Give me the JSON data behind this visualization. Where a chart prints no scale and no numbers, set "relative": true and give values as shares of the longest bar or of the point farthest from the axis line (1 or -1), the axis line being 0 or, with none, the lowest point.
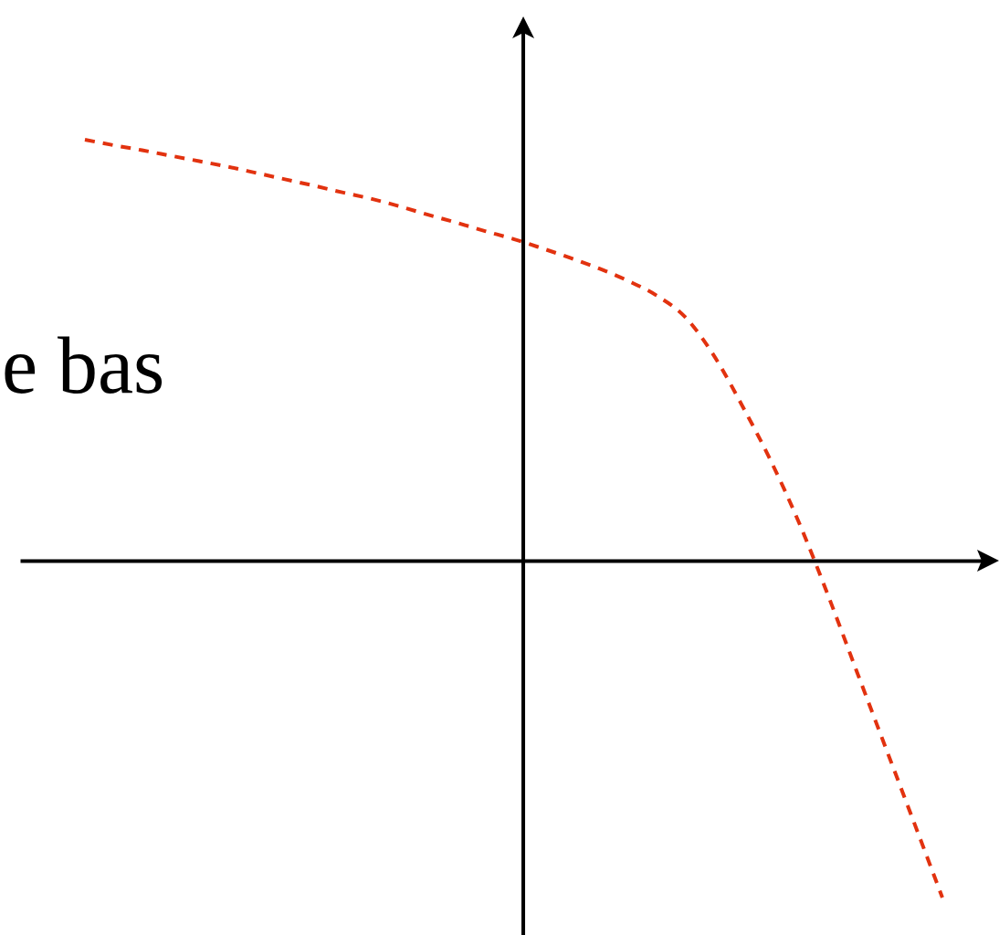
{
  "chart_data": {
    "type": "line",
    "relative": true,
    "line_style": "dashed",
    "categories": [
      null,
      null,
      null,
      null,
      null,
      null,
      null,
      null,
      null,
      null,
      null,
      null,
      null,
      null,
      null,
      null,
      null,
      null,
      null,
      null,
      null,
      null,
      null,
      null,
      null,
      null,
      null,
      null,
      null,
      null,
      null
    ],
    "series": [
      {
        "color": "#e2320f",
        "values": [
          1.0,
          0.987,
          0.975,
          0.962,
          0.949,
          0.936,
          0.921,
          0.906,
          0.891,
          0.875,
          0.86,
          0.842,
          0.822,
          0.803,
          0.783,
          0.764,
          0.742,
          0.719,
          0.694,
          0.665,
          0.63,
          0.579,
          0.488,
          0.368,
          0.237,
          0.088,
          -0.082,
          -0.262,
          -0.441,
          -0.62,
          -0.8
        ]
      }
    ],
    "annotations": [
      "e bas"
    ]
  }
}
